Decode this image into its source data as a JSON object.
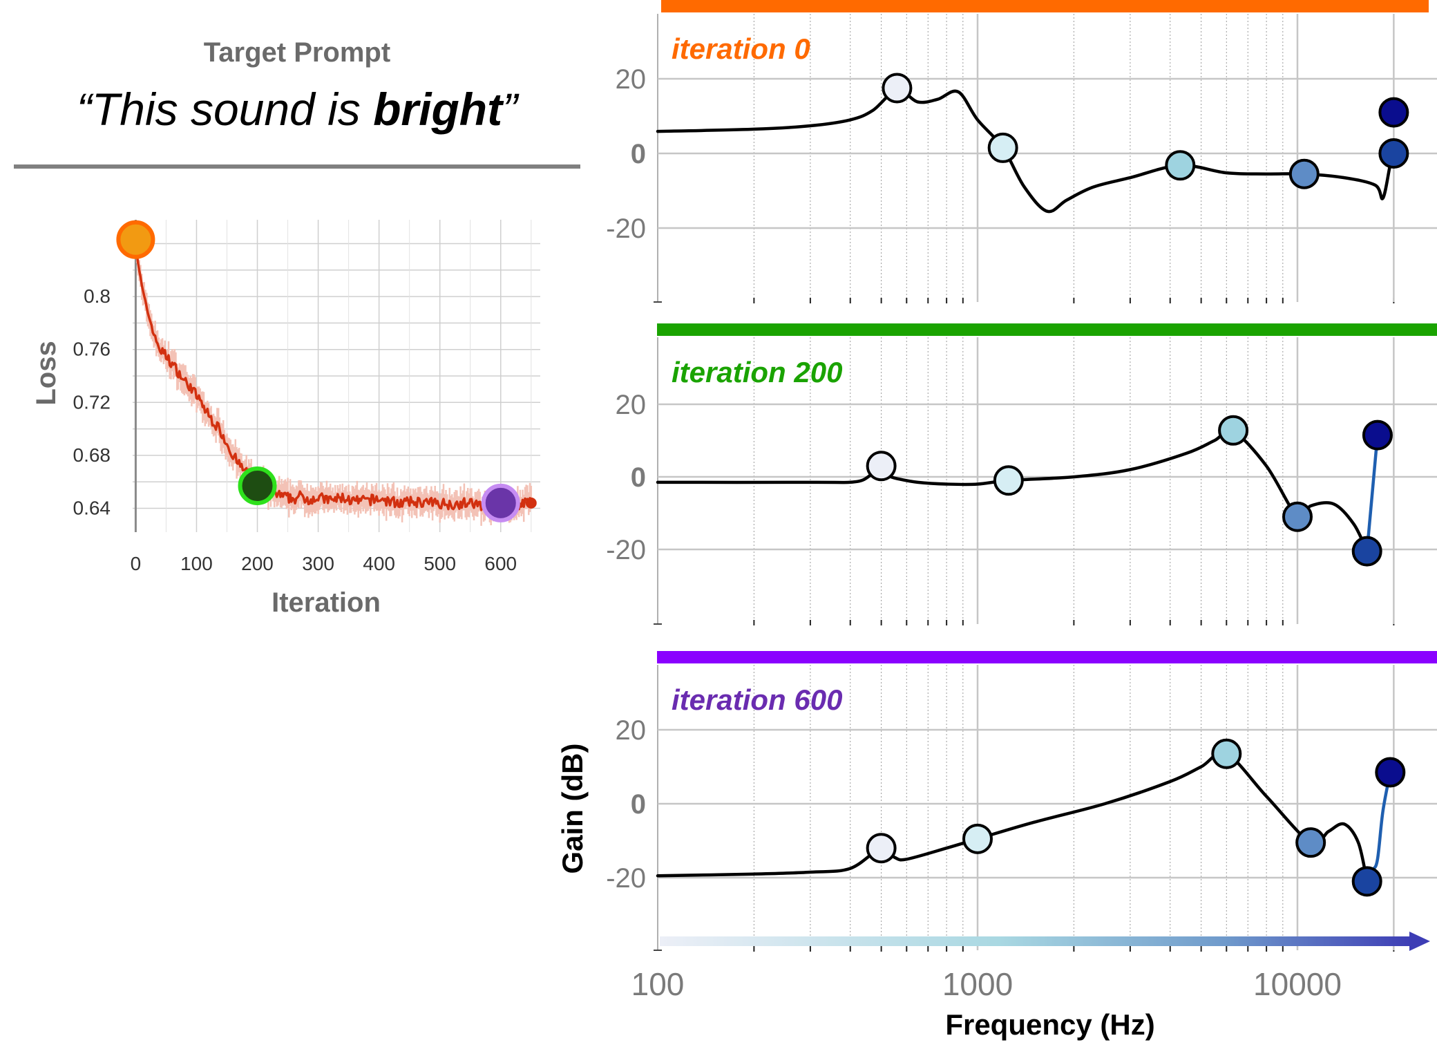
{
  "prompt": {
    "heading": "Target Prompt",
    "quote_open": "“This sound is ",
    "quote_bold": "bright",
    "quote_close": "”"
  },
  "colors": {
    "loss_line": "#d2300f",
    "loss_band": "#f3c2b6",
    "iter0": "#ff6a00",
    "iter200": "#1aa300",
    "iter600": "#8a00ff",
    "iter200_label": "#1aa300",
    "iter600_label": "#6a2cb0",
    "eq_line": "#000000",
    "eq_highlight_line": "#1f5fb0",
    "grid": "#c6c6c6"
  },
  "chart_data": [
    {
      "type": "line",
      "title": "",
      "xlabel": "Iteration",
      "ylabel": "Loss",
      "xlim": [
        -5,
        665
      ],
      "ylim": [
        0.622,
        0.858
      ],
      "x_ticks": [
        0,
        100,
        200,
        300,
        400,
        500,
        600
      ],
      "y_ticks": [
        0.64,
        0.68,
        0.72,
        0.76,
        0.8
      ],
      "y_tick_labels": [
        "0.64",
        "0.68",
        "0.72",
        "0.76",
        "0.8"
      ],
      "grid": true,
      "series": [
        {
          "x": [
            0,
            5,
            10,
            15,
            20,
            25,
            30,
            40,
            50,
            60,
            70,
            80,
            90,
            100,
            110,
            120,
            130,
            140,
            150,
            160,
            170,
            180,
            190,
            200,
            210,
            220,
            230,
            240,
            250,
            260,
            270,
            280,
            300,
            320,
            340,
            360,
            380,
            400,
            420,
            440,
            460,
            480,
            500,
            520,
            540,
            560,
            580,
            600,
            620,
            640,
            650
          ],
          "y": [
            0.84,
            0.822,
            0.808,
            0.797,
            0.788,
            0.78,
            0.771,
            0.76,
            0.755,
            0.749,
            0.743,
            0.736,
            0.732,
            0.725,
            0.718,
            0.71,
            0.704,
            0.698,
            0.689,
            0.68,
            0.673,
            0.668,
            0.664,
            0.659,
            0.657,
            0.653,
            0.651,
            0.649,
            0.648,
            0.647,
            0.649,
            0.647,
            0.648,
            0.646,
            0.648,
            0.645,
            0.646,
            0.647,
            0.645,
            0.644,
            0.645,
            0.644,
            0.644,
            0.643,
            0.644,
            0.643,
            0.642,
            0.643,
            0.642,
            0.644,
            0.644
          ]
        }
      ],
      "markers": [
        {
          "x": 0,
          "y": 0.843,
          "fill": "#f29a12",
          "stroke": "#ff6a00"
        },
        {
          "x": 200,
          "y": 0.657,
          "fill": "#1e4d12",
          "stroke": "#2ee01c"
        },
        {
          "x": 600,
          "y": 0.644,
          "fill": "#6a35a8",
          "stroke": "#c68cf2"
        }
      ]
    },
    {
      "type": "line",
      "title": "iteration 0",
      "xlabel": "",
      "ylabel": "",
      "xscale": "log",
      "xlim": [
        100,
        24000
      ],
      "ylim": [
        -40,
        40
      ],
      "y_ticks": [
        20,
        0,
        -20
      ],
      "y_tick_labels": [
        "20",
        "0",
        "-20"
      ],
      "grid": true,
      "series": [
        {
          "x": [
            100,
            200,
            300,
            400,
            470,
            560,
            650,
            750,
            870,
            1000,
            1200,
            1400,
            1650,
            1900,
            2300,
            3000,
            4300,
            6000,
            8000,
            10500,
            14000,
            17500,
            18500,
            19500,
            20000
          ],
          "y": [
            5.9,
            6.5,
            7.4,
            9.0,
            11.5,
            17.0,
            13.8,
            14.5,
            16.5,
            9.0,
            1.5,
            -9.0,
            -15.5,
            -12.5,
            -9.0,
            -6.5,
            -3.2,
            -5.2,
            -5.5,
            -5.5,
            -6.5,
            -8.5,
            -12.0,
            -3.0,
            0.0
          ]
        }
      ],
      "control_points": [
        {
          "x": 560,
          "y": 17.5,
          "fill": "#eceff7"
        },
        {
          "x": 1200,
          "y": 1.5,
          "fill": "#d6eef4"
        },
        {
          "x": 4300,
          "y": -3.2,
          "fill": "#9ed3e0"
        },
        {
          "x": 10500,
          "y": -5.5,
          "fill": "#5e8cc6"
        },
        {
          "x": 20000,
          "y": 0.0,
          "fill": "#1a44a0"
        },
        {
          "x": 20000,
          "y": 11.0,
          "fill": "#0a0d8e"
        }
      ]
    },
    {
      "type": "line",
      "title": "iteration 200",
      "xlabel": "",
      "ylabel": "",
      "xscale": "log",
      "xlim": [
        100,
        24000
      ],
      "ylim": [
        -40,
        40
      ],
      "y_ticks": [
        20,
        0,
        -20
      ],
      "y_tick_labels": [
        "20",
        "0",
        "-20"
      ],
      "grid": true,
      "series": [
        {
          "x": [
            100,
            300,
            420,
            480,
            560,
            650,
            800,
            1000,
            1250,
            2000,
            3000,
            4500,
            5500,
            6300,
            8000,
            10000,
            11000,
            13000,
            15000,
            16500
          ],
          "y": [
            -1.5,
            -1.5,
            -1.3,
            1.0,
            -0.5,
            -1.5,
            -2.0,
            -2.0,
            -1.0,
            0.0,
            2.0,
            6.5,
            10.0,
            12.5,
            3.0,
            -11.0,
            -8.0,
            -7.5,
            -13.0,
            -20.5
          ]
        },
        {
          "x": [
            16500,
            17800
          ],
          "y": [
            -20.5,
            11.5
          ],
          "highlight": true
        }
      ],
      "control_points": [
        {
          "x": 500,
          "y": 3.0,
          "fill": "#eceff7"
        },
        {
          "x": 1250,
          "y": -1.0,
          "fill": "#d6eef4"
        },
        {
          "x": 6300,
          "y": 12.8,
          "fill": "#9ed3e0"
        },
        {
          "x": 10000,
          "y": -11.0,
          "fill": "#5e8cc6"
        },
        {
          "x": 16500,
          "y": -20.5,
          "fill": "#1a44a0"
        },
        {
          "x": 17800,
          "y": 11.5,
          "fill": "#0a0d8e"
        }
      ]
    },
    {
      "type": "line",
      "title": "iteration 600",
      "xlabel": "Frequency (Hz)",
      "ylabel": "Gain (dB)",
      "xscale": "log",
      "xlim": [
        100,
        24000
      ],
      "ylim": [
        -40,
        40
      ],
      "x_ticks": [
        100,
        1000,
        10000
      ],
      "x_tick_labels": [
        "100",
        "1000",
        "10000"
      ],
      "y_ticks": [
        20,
        0,
        -20
      ],
      "y_tick_labels": [
        "20",
        "0",
        "-20"
      ],
      "grid": true,
      "series": [
        {
          "x": [
            100,
            200,
            300,
            400,
            500,
            550,
            600,
            800,
            1000,
            1500,
            2500,
            4000,
            5000,
            6000,
            8000,
            11000,
            12500,
            14000,
            15500,
            16500
          ],
          "y": [
            -19.5,
            -19.0,
            -18.5,
            -17.5,
            -12.0,
            -14.5,
            -15.0,
            -12.0,
            -9.5,
            -5.0,
            0.0,
            6.0,
            10.0,
            13.5,
            2.0,
            -10.5,
            -7.5,
            -5.5,
            -10.5,
            -21.0
          ]
        },
        {
          "x": [
            16500,
            17200,
            17800,
            18500,
            19500
          ],
          "y": [
            -21.0,
            -18.0,
            -15.0,
            -2.0,
            8.5
          ],
          "highlight": true
        }
      ],
      "control_points": [
        {
          "x": 500,
          "y": -12.0,
          "fill": "#eceff7"
        },
        {
          "x": 1000,
          "y": -9.5,
          "fill": "#d6eef4"
        },
        {
          "x": 6000,
          "y": 13.5,
          "fill": "#9ed3e0"
        },
        {
          "x": 11000,
          "y": -10.5,
          "fill": "#5e8cc6"
        },
        {
          "x": 16500,
          "y": -21.0,
          "fill": "#1a44a0"
        },
        {
          "x": 19500,
          "y": 8.5,
          "fill": "#0a0d8e"
        }
      ]
    }
  ]
}
